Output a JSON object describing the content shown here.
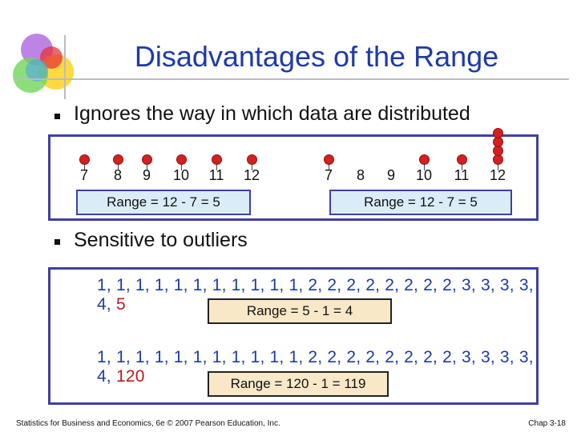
{
  "slide": {
    "title": "Disadvantages of the Range",
    "bullets": [
      "Ignores the way in which data are distributed",
      "Sensitive to outliers"
    ]
  },
  "distribution_example": {
    "left": {
      "labels": [
        "7",
        "8",
        "9",
        "10",
        "11",
        "12"
      ],
      "dots_per_value": [
        1,
        1,
        1,
        1,
        1,
        1
      ],
      "range_text": "Range = 12 - 7 = 5"
    },
    "right": {
      "labels": [
        "7",
        "8",
        "9",
        "10",
        "11",
        "12"
      ],
      "dots_per_value": [
        1,
        0,
        0,
        1,
        1,
        4
      ],
      "range_text": "Range = 12 - 7 = 5"
    }
  },
  "outlier_example": {
    "seq1": {
      "values": "1, 1, 1, 1, 1, 1, 1, 1, 1, 1, 1, 2, 2, 2, 2, 2, 2, 2, 2, 3, 3, 3, 3, 4,",
      "last": "5"
    },
    "range1": "Range = 5 - 1 = 4",
    "seq2": {
      "values": "1, 1, 1, 1, 1, 1, 1, 1, 1, 1, 1, 2, 2, 2, 2, 2, 2, 2, 2, 3, 3, 3, 3, 4,",
      "last": "120"
    },
    "range2": "Range = 120 - 1 = 119"
  },
  "footer": {
    "left": "Statistics for Business and Economics, 6e © 2007 Pearson Education, Inc.",
    "right": "Chap 3-18"
  },
  "colors": {
    "title": "#1e3aa8",
    "accent": "#c01818",
    "panel_border": "#3f3fa6"
  },
  "icons": {
    "logo": "overlapping-circles-logo-icon",
    "bullet": "square-bullet-icon"
  }
}
